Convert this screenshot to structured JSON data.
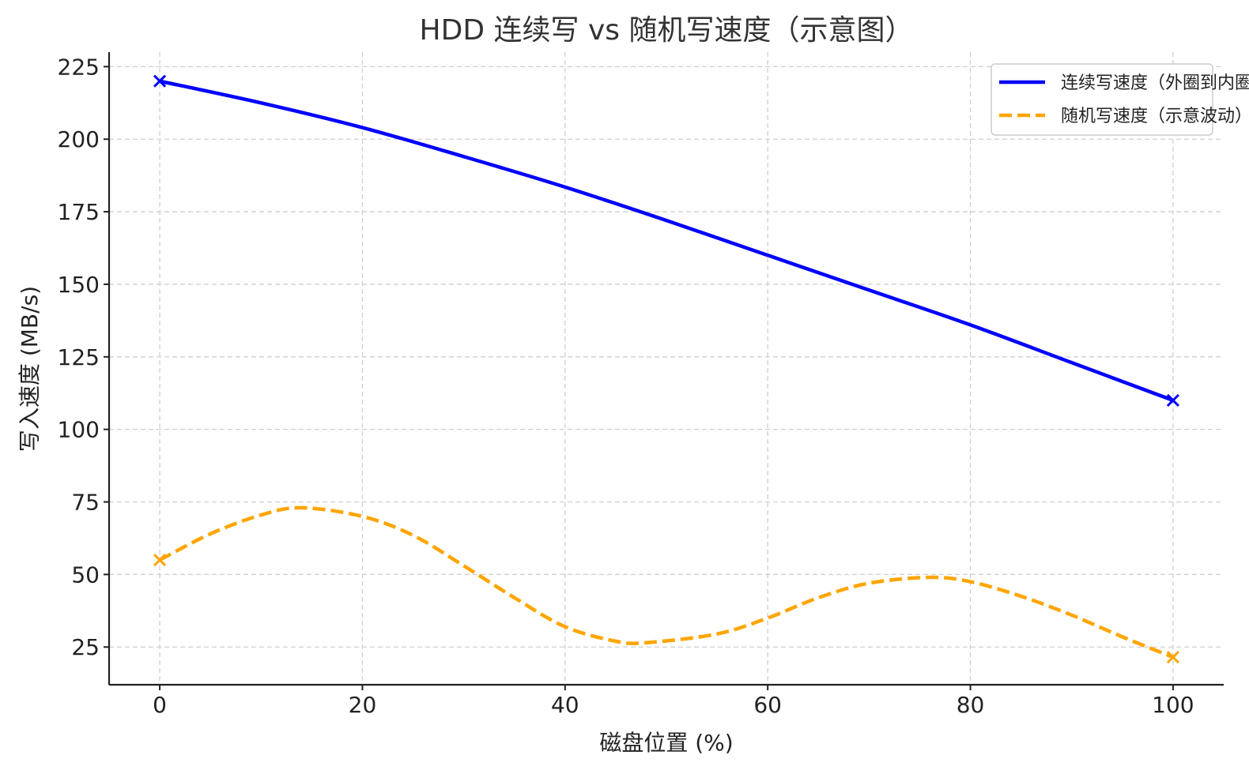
{
  "chart_data": {
    "type": "line",
    "title": "HDD 连续写 vs 随机写速度（示意图）",
    "xlabel": "磁盘位置 (%)",
    "ylabel": "写入速度 (MB/s)",
    "xlim": [
      -5,
      105
    ],
    "ylim": [
      12,
      230
    ],
    "x_ticks": [
      0,
      20,
      40,
      60,
      80,
      100
    ],
    "y_ticks": [
      25,
      50,
      75,
      100,
      125,
      150,
      175,
      200,
      225
    ],
    "grid": true,
    "legend_position": "top-right",
    "series": [
      {
        "name": "连续写速度（外圈到内圈）",
        "color": "#0000ff",
        "style": "solid",
        "x": [
          0,
          10,
          20,
          30,
          40,
          50,
          60,
          70,
          80,
          90,
          100
        ],
        "y": [
          220,
          212.5,
          204,
          194,
          183.5,
          172,
          160,
          148,
          136,
          123,
          110
        ],
        "markers": [
          {
            "x": 0,
            "y": 220
          },
          {
            "x": 100,
            "y": 110
          }
        ]
      },
      {
        "name": "随机写速度（示意波动）",
        "color": "#ffa500",
        "style": "dashed",
        "x": [
          0,
          5,
          10,
          14,
          20,
          25,
          30,
          35,
          40,
          45,
          48,
          55,
          60,
          65,
          70,
          76,
          80,
          85,
          90,
          95,
          100
        ],
        "y": [
          55,
          64,
          70.5,
          73,
          70,
          63.5,
          53,
          42,
          32,
          27,
          26.5,
          29.5,
          35,
          42,
          47,
          49,
          47.5,
          42.5,
          36,
          28.5,
          21.5
        ],
        "markers": [
          {
            "x": 0,
            "y": 55
          },
          {
            "x": 100,
            "y": 21.5
          }
        ]
      }
    ]
  }
}
